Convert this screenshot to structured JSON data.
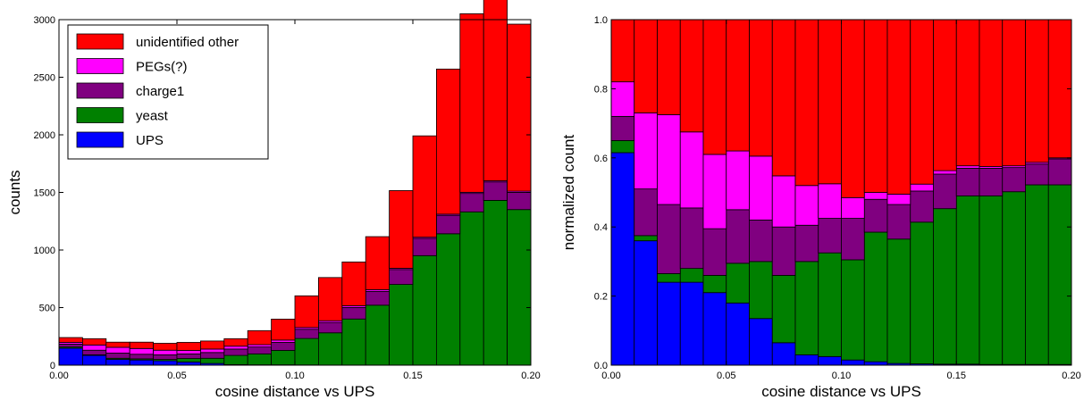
{
  "chart_data": [
    {
      "type": "bar",
      "stacked": true,
      "normalized": false,
      "bin_edges_xlim": [
        0.0,
        0.2
      ],
      "bin_width": 0.01,
      "x_bin_starts": [
        0.0,
        0.01,
        0.02,
        0.03,
        0.04,
        0.05,
        0.06,
        0.07,
        0.08,
        0.09,
        0.1,
        0.11,
        0.12,
        0.13,
        0.14,
        0.15,
        0.16,
        0.17,
        0.18,
        0.19
      ],
      "xlabel": "cosine distance vs UPS",
      "ylabel": "counts",
      "xlim": [
        0.0,
        0.2
      ],
      "ylim": [
        0,
        3000
      ],
      "xticks": [
        "0.00",
        "0.05",
        "0.10",
        "0.15",
        "0.20"
      ],
      "yticks": [
        "0",
        "500",
        "1000",
        "1500",
        "2000",
        "2500",
        "3000"
      ],
      "legend_position": "top-left",
      "series": [
        {
          "name": "UPS",
          "color": "#0000ff",
          "values": [
            148,
            85,
            50,
            45,
            38,
            28,
            15,
            5,
            3,
            3,
            2,
            1,
            1,
            1,
            1,
            1,
            1,
            1,
            1,
            1
          ]
        },
        {
          "name": "yeast",
          "color": "#008000",
          "values": [
            10,
            5,
            10,
            10,
            12,
            30,
            45,
            80,
            95,
            125,
            230,
            280,
            400,
            520,
            700,
            950,
            1140,
            1330,
            1430,
            1350
          ]
        },
        {
          "name": "charge1",
          "color": "#800080",
          "values": [
            25,
            40,
            45,
            40,
            40,
            40,
            50,
            55,
            60,
            70,
            80,
            90,
            100,
            120,
            130,
            150,
            160,
            160,
            160,
            150
          ]
        },
        {
          "name": "PEGs(?)",
          "color": "#ff00ff",
          "values": [
            15,
            45,
            50,
            50,
            40,
            30,
            30,
            25,
            20,
            20,
            15,
            15,
            15,
            15,
            10,
            10,
            10,
            10,
            10,
            10
          ]
        },
        {
          "name": "unidentified other",
          "color": "#ff0000",
          "values": [
            42,
            55,
            45,
            55,
            60,
            70,
            70,
            65,
            122,
            182,
            275,
            375,
            380,
            460,
            675,
            880,
            1260,
            1550,
            1590,
            1450
          ]
        }
      ]
    },
    {
      "type": "bar",
      "stacked": true,
      "normalized": true,
      "bin_width": 0.01,
      "x_bin_starts": [
        0.0,
        0.01,
        0.02,
        0.03,
        0.04,
        0.05,
        0.06,
        0.07,
        0.08,
        0.09,
        0.1,
        0.11,
        0.12,
        0.13,
        0.14,
        0.15,
        0.16,
        0.17,
        0.18,
        0.19
      ],
      "xlabel": "cosine distance vs UPS",
      "ylabel": "normalized count",
      "xlim": [
        0.0,
        0.2
      ],
      "ylim": [
        0.0,
        1.0
      ],
      "xticks": [
        "0.00",
        "0.05",
        "0.10",
        "0.15",
        "0.20"
      ],
      "yticks": [
        "0.0",
        "0.2",
        "0.4",
        "0.6",
        "0.8",
        "1.0"
      ],
      "series": [
        {
          "name": "UPS",
          "color": "#0000ff",
          "values": [
            0.615,
            0.36,
            0.24,
            0.24,
            0.21,
            0.18,
            0.135,
            0.065,
            0.03,
            0.025,
            0.015,
            0.01,
            0.005,
            0.004,
            0.003,
            0.003,
            0.002,
            0.002,
            0.002,
            0.002
          ]
        },
        {
          "name": "yeast",
          "color": "#008000",
          "values": [
            0.035,
            0.015,
            0.025,
            0.04,
            0.05,
            0.115,
            0.165,
            0.195,
            0.27,
            0.3,
            0.29,
            0.375,
            0.36,
            0.41,
            0.45,
            0.487,
            0.488,
            0.5,
            0.52,
            0.52
          ]
        },
        {
          "name": "charge1",
          "color": "#800080",
          "values": [
            0.07,
            0.135,
            0.2,
            0.175,
            0.135,
            0.155,
            0.12,
            0.14,
            0.105,
            0.1,
            0.12,
            0.095,
            0.1,
            0.09,
            0.1,
            0.08,
            0.08,
            0.07,
            0.06,
            0.075
          ]
        },
        {
          "name": "PEGs(?)",
          "color": "#ff00ff",
          "values": [
            0.1,
            0.22,
            0.26,
            0.22,
            0.215,
            0.17,
            0.185,
            0.148,
            0.115,
            0.1,
            0.06,
            0.02,
            0.03,
            0.02,
            0.01,
            0.007,
            0.005,
            0.005,
            0.005,
            0.003
          ]
        },
        {
          "name": "unidentified other",
          "color": "#ff0000",
          "values": [
            0.18,
            0.27,
            0.275,
            0.325,
            0.39,
            0.38,
            0.395,
            0.452,
            0.48,
            0.475,
            0.515,
            0.5,
            0.505,
            0.476,
            0.437,
            0.423,
            0.425,
            0.423,
            0.413,
            0.4
          ]
        }
      ]
    }
  ]
}
